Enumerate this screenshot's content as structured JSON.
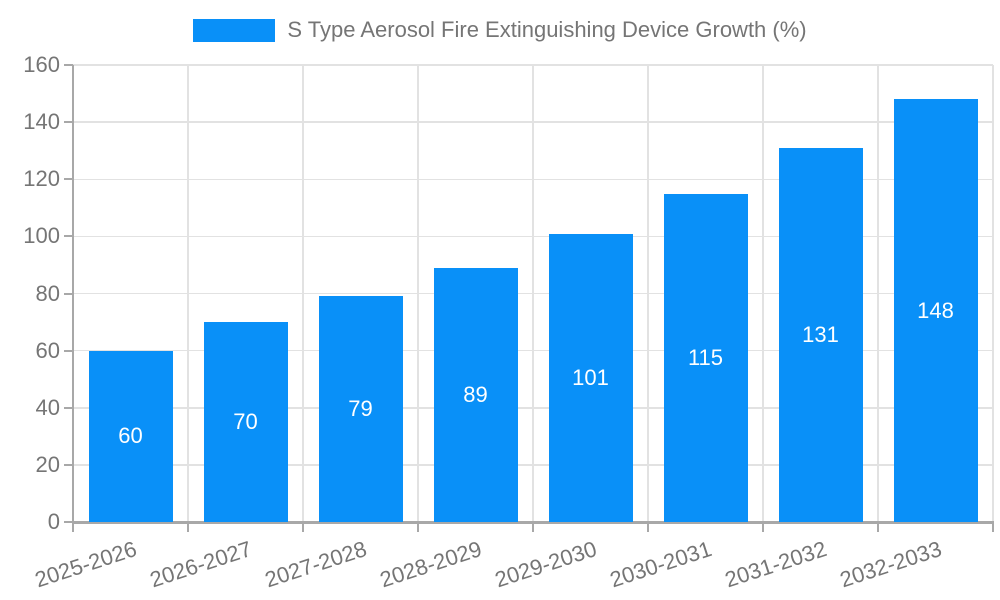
{
  "chart_data": {
    "type": "bar",
    "title": "S Type Aerosol Fire Extinguishing Device Growth (%)",
    "categories": [
      "2025-2026",
      "2026-2027",
      "2027-2028",
      "2028-2029",
      "2029-2030",
      "2030-2031",
      "2031-2032",
      "2032-2033"
    ],
    "values": [
      60,
      70,
      79,
      89,
      101,
      115,
      131,
      148
    ],
    "xlabel": "",
    "ylabel": "",
    "ylim": [
      0,
      160
    ],
    "y_ticks": [
      0,
      20,
      40,
      60,
      80,
      100,
      120,
      140,
      160
    ],
    "grid": true,
    "legend_position": "top-center",
    "x_label_rotation_deg": -18,
    "colors": {
      "bar": "#0990f8",
      "value_label": "#ffffff",
      "axis_text": "#757575",
      "grid_line": "#e2e2e2",
      "axis_line": "#a8a8a8",
      "background": "#ffffff"
    }
  }
}
